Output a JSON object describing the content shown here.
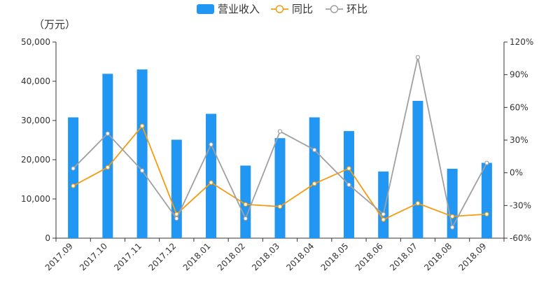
{
  "chart_data": {
    "type": "bar",
    "unit_label": "（万元）",
    "categories": [
      "2017.09",
      "2017.10",
      "2017.11",
      "2017.12",
      "2018.01",
      "2018.02",
      "2018.03",
      "2018.04",
      "2018.05",
      "2018.06",
      "2018.07",
      "2018.08",
      "2018.09"
    ],
    "series": [
      {
        "name": "营业收入",
        "type": "bar",
        "axis": "left",
        "color": "#2196f3",
        "values": [
          30800,
          41900,
          43000,
          25100,
          31700,
          18500,
          25500,
          30800,
          27300,
          17000,
          35000,
          17700,
          19200
        ]
      },
      {
        "name": "同比",
        "type": "line",
        "axis": "right",
        "color": "#f39c12",
        "values": [
          -12,
          5,
          43,
          -38,
          -9,
          -29,
          -31,
          -10,
          4,
          -43,
          -28,
          -40,
          -38
        ]
      },
      {
        "name": "环比",
        "type": "line",
        "axis": "right",
        "color": "#a0a0a0",
        "values": [
          4,
          36,
          2,
          -42,
          26,
          -42,
          38,
          21,
          -11,
          -38,
          106,
          -50,
          9
        ]
      }
    ],
    "y_left": {
      "min": 0,
      "max": 50000,
      "ticks": [
        "0",
        "10,000",
        "20,000",
        "30,000",
        "40,000",
        "50,000"
      ]
    },
    "y_right": {
      "min": -60,
      "max": 120,
      "ticks": [
        "-60%",
        "-30%",
        "0%",
        "30%",
        "60%",
        "90%",
        "120%"
      ]
    },
    "legend_position": "top-center",
    "grid": false
  }
}
